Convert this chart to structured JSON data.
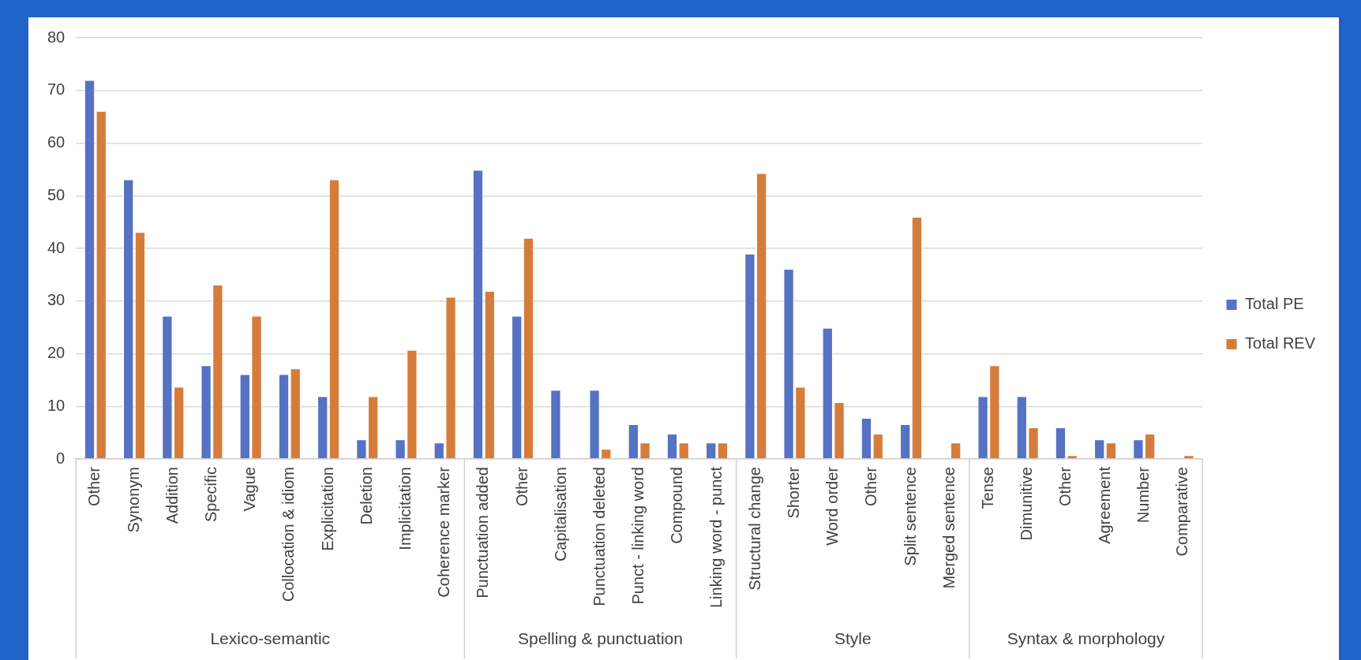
{
  "chart_data": {
    "type": "bar",
    "categories": [
      "Other",
      "Synonym",
      "Addition",
      "Specific",
      "Vague",
      "Collocation & idiom",
      "Explicitation",
      "Deletion",
      "Implicitation",
      "Coherence marker",
      "Punctuation added",
      "Other",
      "Capitalisation",
      "Punctuation deleted",
      "Punct - linking word",
      "Compound",
      "Linking word - punct",
      "Structural change",
      "Shorter",
      "Word order",
      "Other",
      "Split sentence",
      "Merged sentence",
      "Tense",
      "Dimunitive",
      "Other",
      "Agreement",
      "Number",
      "Comparative"
    ],
    "series": [
      {
        "name": "Total PE",
        "color": "#5572c3",
        "values": [
          72,
          53.1,
          27.2,
          17.8,
          16.1,
          16.1,
          11.9,
          3.7,
          3.7,
          3.1,
          54.9,
          27.2,
          13.1,
          13.1,
          6.6,
          4.8,
          3.1,
          39,
          36.1,
          24.9,
          7.8,
          6.6,
          0,
          11.9,
          11.9,
          6,
          3.7,
          3.7,
          0
        ]
      },
      {
        "name": "Total REV",
        "color": "#d67c3a",
        "values": [
          66.1,
          43.1,
          13.7,
          33.1,
          27.2,
          17.2,
          53.1,
          11.9,
          20.7,
          30.8,
          31.9,
          42,
          0,
          1.9,
          3.1,
          3.1,
          3.1,
          54.3,
          13.7,
          10.8,
          4.8,
          46,
          3.1,
          17.8,
          6,
          0.7,
          3.1,
          4.8,
          0.7
        ]
      }
    ],
    "annotations": [
      "Lexico-semantic",
      "Spelling & punctuation",
      "Style",
      "Syntax & morphology"
    ],
    "ylim": [
      0,
      80
    ],
    "yticks": [
      0,
      10,
      20,
      30,
      40,
      50,
      60,
      70,
      80
    ],
    "grid": "y",
    "legend": "right"
  }
}
